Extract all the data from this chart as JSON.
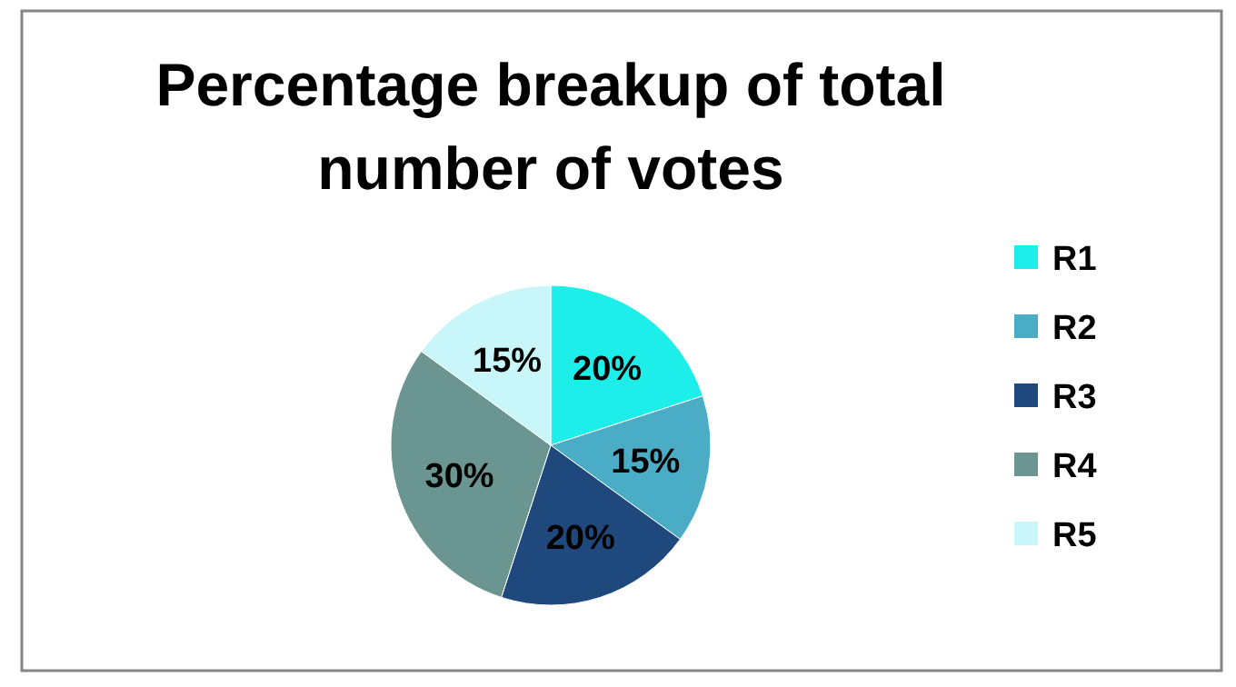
{
  "chart_data": {
    "type": "pie",
    "title": "Percentage breakup of total number of votes",
    "categories": [
      "R1",
      "R2",
      "R3",
      "R4",
      "R5"
    ],
    "values": [
      20,
      15,
      20,
      30,
      15
    ],
    "value_labels": [
      "20%",
      "15%",
      "20%",
      "30%",
      "15%"
    ],
    "colors": [
      "#1eeeea",
      "#4bacc6",
      "#1f497d",
      "#6a9591",
      "#c9f6f8"
    ],
    "legend": "right"
  }
}
